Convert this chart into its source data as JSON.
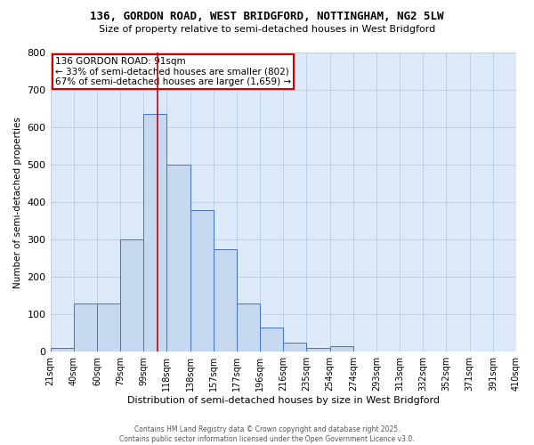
{
  "title1": "136, GORDON ROAD, WEST BRIDGFORD, NOTTINGHAM, NG2 5LW",
  "title2": "Size of property relative to semi-detached houses in West Bridgford",
  "xlabel": "Distribution of semi-detached houses by size in West Bridgford",
  "ylabel": "Number of semi-detached properties",
  "bin_labels": [
    "21sqm",
    "40sqm",
    "60sqm",
    "79sqm",
    "99sqm",
    "118sqm",
    "138sqm",
    "157sqm",
    "177sqm",
    "196sqm",
    "216sqm",
    "235sqm",
    "254sqm",
    "274sqm",
    "293sqm",
    "313sqm",
    "332sqm",
    "352sqm",
    "371sqm",
    "391sqm",
    "410sqm"
  ],
  "bar_heights": [
    10,
    130,
    130,
    300,
    635,
    500,
    380,
    275,
    130,
    65,
    25,
    10,
    15,
    0,
    0,
    0,
    0,
    0,
    0,
    0
  ],
  "bar_color": "#c6d9f0",
  "bar_edge_color": "#4472c4",
  "property_size_bin": 4,
  "property_label": "136 GORDON ROAD: 91sqm",
  "pct_smaller": 33,
  "pct_larger": 67,
  "n_smaller": 802,
  "n_larger": 1659,
  "vline_color": "#cc0000",
  "annotation_box_color": "#cc0000",
  "ylim": [
    0,
    800
  ],
  "yticks": [
    0,
    100,
    200,
    300,
    400,
    500,
    600,
    700,
    800
  ],
  "grid_color": "#b8cce4",
  "background_color": "#dce9f8",
  "footer1": "Contains HM Land Registry data © Crown copyright and database right 2025.",
  "footer2": "Contains public sector information licensed under the Open Government Licence v3.0."
}
